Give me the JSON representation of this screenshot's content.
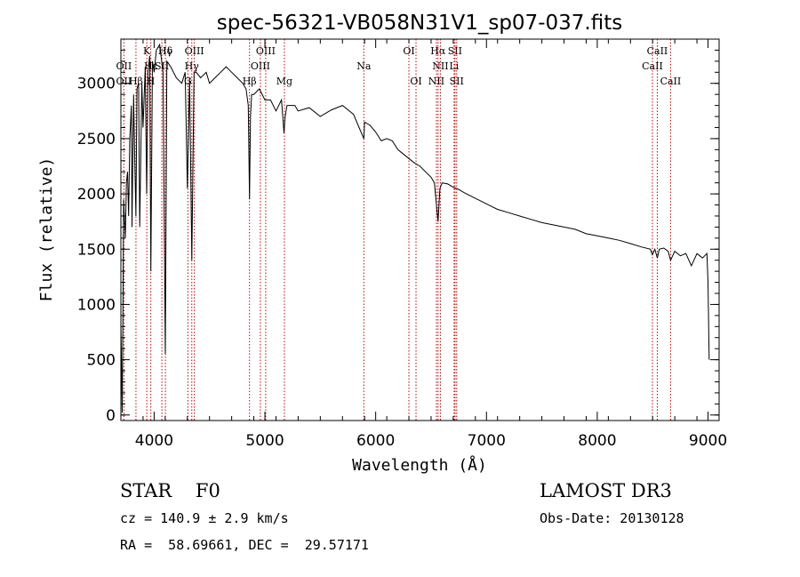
{
  "chart_data": {
    "type": "line",
    "title": "spec-56321-VB058N31V1_sp07-037.fits",
    "xlabel": "Wavelength (Å)",
    "ylabel": "Flux (relative)",
    "xlim": [
      3700,
      9100
    ],
    "ylim": [
      -50,
      3400
    ],
    "xticks": [
      4000,
      5000,
      6000,
      7000,
      8000,
      9000
    ],
    "yticks": [
      0,
      500,
      1000,
      1500,
      2000,
      2500,
      3000
    ],
    "xminor_step": 200,
    "yminor_step": 100,
    "series": [
      {
        "name": "Flux",
        "x": [
          3700,
          3712,
          3725,
          3740,
          3750,
          3760,
          3770,
          3780,
          3795,
          3800,
          3815,
          3825,
          3836,
          3845,
          3860,
          3870,
          3889,
          3900,
          3920,
          3933,
          3945,
          3960,
          3970,
          3985,
          4000,
          4020,
          4050,
          4080,
          4101,
          4115,
          4150,
          4200,
          4250,
          4280,
          4300,
          4320,
          4340,
          4360,
          4380,
          4420,
          4470,
          4500,
          4550,
          4600,
          4650,
          4700,
          4750,
          4800,
          4830,
          4850,
          4861,
          4870,
          4880,
          4900,
          4950,
          5000,
          5050,
          5100,
          5150,
          5172,
          5183,
          5200,
          5270,
          5300,
          5400,
          5500,
          5600,
          5700,
          5800,
          5850,
          5893,
          5900,
          5950,
          6000,
          6050,
          6100,
          6150,
          6200,
          6250,
          6300,
          6350,
          6400,
          6450,
          6500,
          6530,
          6563,
          6580,
          6600,
          6650,
          6700,
          6750,
          6800,
          6900,
          7000,
          7100,
          7200,
          7300,
          7400,
          7500,
          7600,
          7700,
          7800,
          7900,
          8000,
          8100,
          8200,
          8300,
          8400,
          8480,
          8498,
          8520,
          8542,
          8560,
          8600,
          8640,
          8662,
          8700,
          8750,
          8800,
          8850,
          8900,
          8950,
          8990,
          9000,
          9010
        ],
        "values": [
          800,
          20,
          1950,
          1600,
          2100,
          2200,
          1800,
          2500,
          2800,
          1700,
          2900,
          2300,
          1800,
          2950,
          3000,
          1700,
          3000,
          2600,
          3150,
          2000,
          3100,
          3250,
          1300,
          3200,
          3100,
          3300,
          3350,
          3100,
          550,
          3200,
          3150,
          3050,
          3000,
          3100,
          2050,
          3050,
          1400,
          3100,
          3100,
          3050,
          3100,
          3000,
          3050,
          3100,
          3150,
          3100,
          3050,
          3000,
          2950,
          2800,
          1950,
          2700,
          2900,
          2900,
          2950,
          2850,
          2850,
          2750,
          2850,
          2550,
          2700,
          2800,
          2800,
          2750,
          2780,
          2700,
          2760,
          2800,
          2720,
          2600,
          2500,
          2650,
          2620,
          2560,
          2480,
          2500,
          2480,
          2400,
          2360,
          2320,
          2280,
          2250,
          2200,
          2150,
          2100,
          1750,
          2050,
          2100,
          2090,
          2060,
          2040,
          2010,
          1960,
          1910,
          1860,
          1830,
          1800,
          1770,
          1740,
          1720,
          1700,
          1680,
          1640,
          1620,
          1600,
          1580,
          1550,
          1520,
          1500,
          1450,
          1500,
          1420,
          1500,
          1510,
          1480,
          1400,
          1480,
          1440,
          1460,
          1350,
          1460,
          1420,
          1460,
          1200,
          500
        ]
      }
    ],
    "line_markers": [
      {
        "label": "Hδ",
        "x": 4102,
        "row": 0
      },
      {
        "label": "OII",
        "x": 3727,
        "row": 1
      },
      {
        "label": "OII",
        "x": 3727,
        "row": 2
      },
      {
        "label": "Hε",
        "x": 3970,
        "row": 1
      },
      {
        "label": "Hβ",
        "x": 3836,
        "row": 2
      },
      {
        "label": "K",
        "x": 3934,
        "row": 0
      },
      {
        "label": "H",
        "x": 3969,
        "row": 2
      },
      {
        "label": "Hγ",
        "x": 4101,
        "row": 0
      },
      {
        "label": "SII",
        "x": 4070,
        "row": 1
      },
      {
        "label": "OIII",
        "x": 4363,
        "row": 0
      },
      {
        "label": "Hγ",
        "x": 4340,
        "row": 1
      },
      {
        "label": "G",
        "x": 4305,
        "row": 2
      },
      {
        "label": "OIII",
        "x": 5007,
        "row": 0
      },
      {
        "label": "OIII",
        "x": 4959,
        "row": 1
      },
      {
        "label": "Hβ",
        "x": 4861,
        "row": 2
      },
      {
        "label": "Mg",
        "x": 5176,
        "row": 2
      },
      {
        "label": "Na",
        "x": 5893,
        "row": 1
      },
      {
        "label": "OI",
        "x": 6300,
        "row": 0
      },
      {
        "label": "OI",
        "x": 6364,
        "row": 2
      },
      {
        "label": "Hα",
        "x": 6563,
        "row": 0
      },
      {
        "label": "SII",
        "x": 6716,
        "row": 0
      },
      {
        "label": "NII",
        "x": 6584,
        "row": 1
      },
      {
        "label": "Li",
        "x": 6708,
        "row": 1
      },
      {
        "label": "NII",
        "x": 6548,
        "row": 2
      },
      {
        "label": "SII",
        "x": 6731,
        "row": 2
      },
      {
        "label": "CaII",
        "x": 8542,
        "row": 0
      },
      {
        "label": "CaII",
        "x": 8498,
        "row": 1
      },
      {
        "label": "CaII",
        "x": 8662,
        "row": 2
      }
    ],
    "marker_color": "#cc0000"
  },
  "info": {
    "class_line": "STAR    F0",
    "survey": "LAMOST DR3",
    "cz": "cz = 140.9 ± 2.9 km/s",
    "obs_date": "Obs-Date: 20130128",
    "coords": "RA =  58.69661, DEC =  29.57171"
  }
}
